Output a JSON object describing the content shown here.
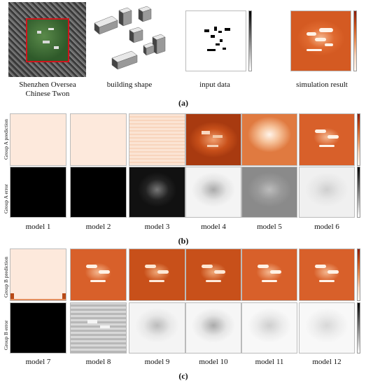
{
  "panel_a": {
    "label": "(a)",
    "captions": {
      "satellite": [
        "Shenzhen Oversea",
        "Chinese Twon"
      ],
      "building": "building shape",
      "input": "input data",
      "simulation": "simulation result"
    }
  },
  "panel_b": {
    "label": "(b)",
    "row_labels": {
      "prediction": "Group A  prediction",
      "error": "Group A  error"
    },
    "models": [
      "model 1",
      "model 2",
      "model 3",
      "model 4",
      "model 5",
      "model 6"
    ]
  },
  "panel_c": {
    "label": "(c)",
    "row_labels": {
      "prediction": "Group B  prediction",
      "error": "Group B  error"
    },
    "models": [
      "model 7",
      "model 8",
      "model 9",
      "model 10",
      "model 11",
      "model 12"
    ]
  },
  "colors": {
    "heat_dark": "#8a1a08",
    "heat_mid": "#d0561e",
    "heat_light": "#fbe7d8",
    "highlight_box": "#d0141c",
    "vegetation": "#3d6b37"
  }
}
